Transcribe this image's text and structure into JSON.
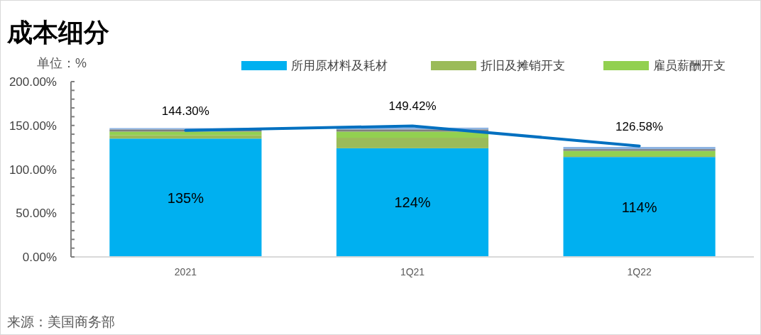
{
  "chart_data": {
    "type": "bar",
    "title": "成本细分",
    "ylabel": "单位：%",
    "categories": [
      "2021",
      "1Q21",
      "1Q22"
    ],
    "stacked": true,
    "series": [
      {
        "name": "所用原材料及耗材",
        "color": "#00b0f0",
        "values": [
          135,
          124,
          114
        ],
        "value_labels": [
          "135%",
          "124%",
          "114%"
        ]
      },
      {
        "name": "折旧及摊销开支",
        "color": "#9bbb59",
        "values": [
          4,
          12,
          1
        ]
      },
      {
        "name": "雇员薪酬开支",
        "color": "#92d050",
        "values": [
          4,
          7,
          6
        ]
      },
      {
        "color": "#7f7f7f",
        "values": [
          2.5,
          2.5,
          2
        ]
      },
      {
        "color": "#8eb4e3",
        "values": [
          1.5,
          2,
          2.5
        ]
      },
      {
        "type": "line",
        "color": "#0070c0",
        "values": [
          144.3,
          149.42,
          126.58
        ],
        "value_labels": [
          "144.30%",
          "149.42%",
          "126.58%"
        ]
      }
    ],
    "ylim": [
      0,
      200
    ],
    "yticks": [
      {
        "value": 0,
        "label": "0.00%"
      },
      {
        "value": 10,
        "label": null
      },
      {
        "value": 20,
        "label": null
      },
      {
        "value": 30,
        "label": null
      },
      {
        "value": 40,
        "label": null
      },
      {
        "value": 50,
        "label": "50.00%"
      },
      {
        "value": 60,
        "label": null
      },
      {
        "value": 70,
        "label": null
      },
      {
        "value": 80,
        "label": null
      },
      {
        "value": 90,
        "label": null
      },
      {
        "value": 100,
        "label": "100.00%"
      },
      {
        "value": 110,
        "label": null
      },
      {
        "value": 120,
        "label": null
      },
      {
        "value": 130,
        "label": null
      },
      {
        "value": 140,
        "label": null
      },
      {
        "value": 150,
        "label": "150.00%"
      },
      {
        "value": 160,
        "label": null
      },
      {
        "value": 170,
        "label": null
      },
      {
        "value": 180,
        "label": null
      },
      {
        "value": 190,
        "label": null
      },
      {
        "value": 200,
        "label": "200.00%"
      }
    ],
    "grid": false,
    "legend": "top",
    "marker": "none",
    "annotations": [
      "来源：美国商务部"
    ]
  }
}
